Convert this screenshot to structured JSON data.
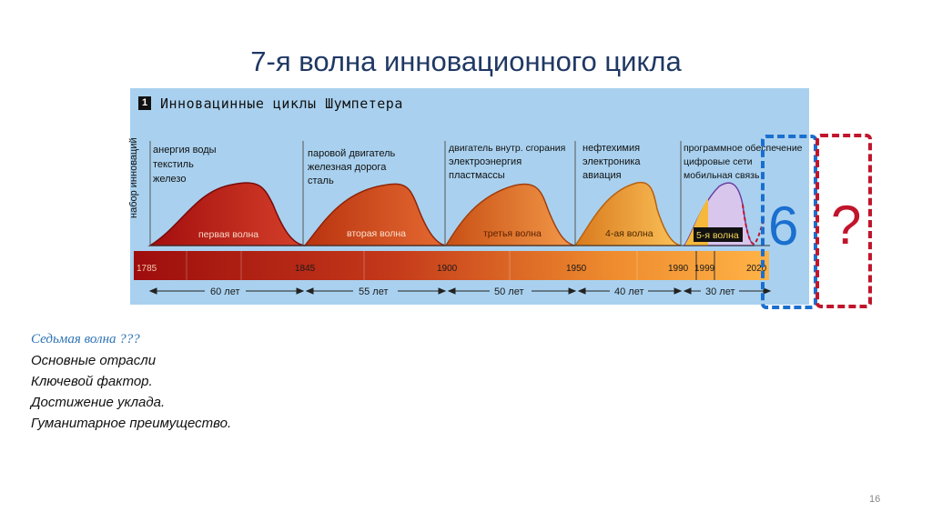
{
  "slide_title": "7-я волна инновационного цикла",
  "panel": {
    "number": "1",
    "title": "Инновацинные циклы Шумпетера",
    "vertical_label": "набор инноваций"
  },
  "waves": [
    {
      "label": "первая волна",
      "industries": [
        "анергия воды",
        "текстиль",
        "железо"
      ],
      "color_dark": "#a30e0e",
      "color_light": "#d5402a"
    },
    {
      "label": "вторая волна",
      "industries": [
        "паровой двигатель",
        "железная дорога",
        "сталь"
      ],
      "color_dark": "#b9330f",
      "color_light": "#e56a32"
    },
    {
      "label": "третья волна",
      "industries": [
        "двигатель внутр. сгорания",
        "электроэнергия",
        "пластмассы"
      ],
      "color_dark": "#c84f14",
      "color_light": "#f39a4a"
    },
    {
      "label": "4-ая волна",
      "industries": [
        "нефтехимия",
        "электроника",
        "авиация"
      ],
      "color_dark": "#d97a1d",
      "color_light": "#fbc25a"
    },
    {
      "label": "5-я волна",
      "industries": [
        "программное обеспечение",
        "цифровые сети",
        "мобильная связь"
      ],
      "color_dark": "#6b3fa0",
      "color_light": "#d8c6ec"
    }
  ],
  "timeline_years": [
    "1785",
    "1845",
    "1900",
    "1950",
    "1990",
    "1999",
    "2020"
  ],
  "durations": [
    "60 лет",
    "55 лет",
    "50 лет",
    "40 лет",
    "30 лет"
  ],
  "box_six": "6",
  "box_question": "?",
  "text": {
    "heading": "Седьмая волна ???",
    "lines": [
      "Основные отрасли",
      "Ключевой фактор.",
      "Достижение уклада.",
      "Гуманитарное преимущество."
    ]
  },
  "page_number": "16"
}
